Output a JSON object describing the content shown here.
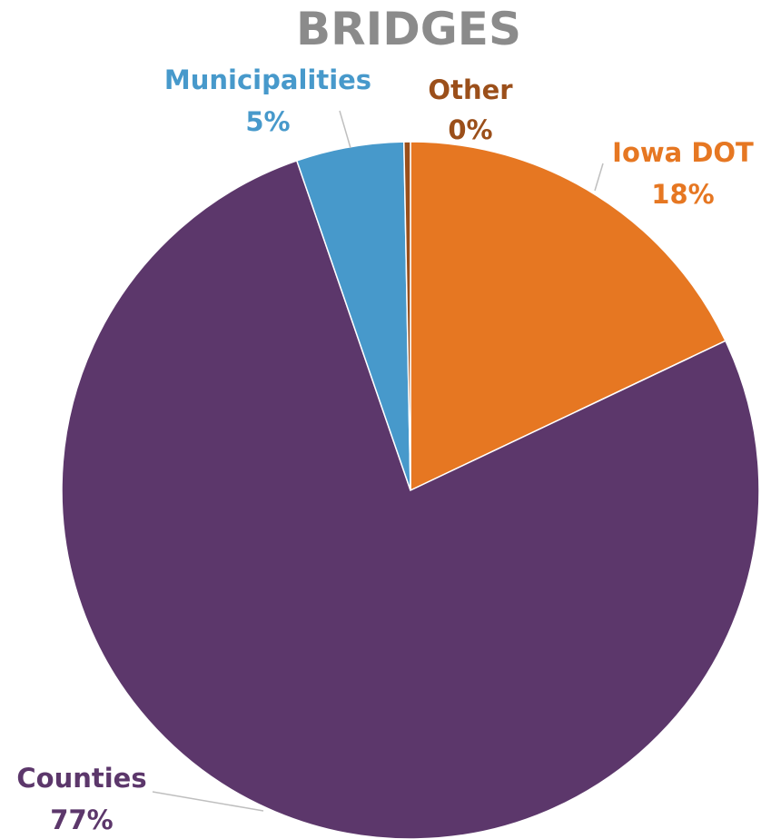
{
  "chart_data": {
    "type": "pie",
    "title": "BRIDGES",
    "slices": [
      {
        "label": "Iowa DOT",
        "value": 18,
        "percent_label": "18%",
        "color": "#E67722"
      },
      {
        "label": "Counties",
        "value": 77,
        "percent_label": "77%",
        "color": "#5C376B"
      },
      {
        "label": "Municipalities",
        "value": 5,
        "percent_label": "5%",
        "color": "#4799CB"
      },
      {
        "label": "Other",
        "value": 0.3,
        "percent_label": "0%",
        "color": "#9B4F1A"
      }
    ],
    "start_angle_deg": 0,
    "direction": "clockwise",
    "legend": "none"
  },
  "colors": {
    "title": "#8B8B8B",
    "leader_line": "#BFBFBF",
    "slice_border": "#FFFFFF"
  }
}
